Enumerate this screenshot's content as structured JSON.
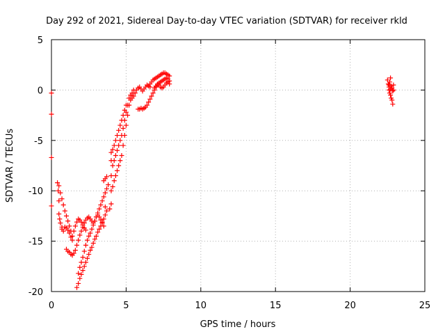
{
  "chart_data": {
    "type": "scatter",
    "title": "Day 292 of 2021, Sidereal Day-to-day VTEC variation (SDTVAR) for receiver rkld",
    "xlabel": "GPS time / hours",
    "ylabel": "SDTVAR / TECUs",
    "xlim": [
      0,
      25
    ],
    "ylim": [
      -20,
      5
    ],
    "xticks": [
      0,
      5,
      10,
      15,
      20,
      25
    ],
    "yticks": [
      -20,
      -15,
      -10,
      -5,
      0,
      5
    ],
    "grid": true,
    "marker": "plus",
    "color": "#ff0000",
    "series": [
      {
        "values": [
          [
            0.0,
            -0.3
          ],
          [
            0.0,
            -2.4
          ],
          [
            0.0,
            -6.7
          ],
          [
            0.0,
            -11.5
          ],
          [
            0.4,
            -9.2
          ],
          [
            0.45,
            -10.0
          ],
          [
            0.5,
            -11.0
          ],
          [
            0.5,
            -12.3
          ],
          [
            0.55,
            -12.8
          ],
          [
            0.6,
            -13.2
          ],
          [
            0.7,
            -13.6
          ],
          [
            0.7,
            -13.8
          ],
          [
            0.8,
            -14.0
          ],
          [
            0.5,
            -9.5
          ],
          [
            0.6,
            -10.2
          ],
          [
            0.7,
            -10.8
          ],
          [
            0.8,
            -11.4
          ],
          [
            0.9,
            -12.0
          ],
          [
            1.0,
            -12.5
          ],
          [
            1.1,
            -13.0
          ],
          [
            1.2,
            -13.5
          ],
          [
            1.3,
            -14.0
          ],
          [
            1.4,
            -14.5
          ],
          [
            1.5,
            -14.0
          ],
          [
            1.6,
            -13.5
          ],
          [
            1.7,
            -13.1
          ],
          [
            1.8,
            -12.8
          ],
          [
            1.9,
            -12.9
          ],
          [
            2.0,
            -13.1
          ],
          [
            2.1,
            -13.4
          ],
          [
            2.2,
            -13.7
          ],
          [
            2.3,
            -13.9
          ],
          [
            0.9,
            -13.6
          ],
          [
            1.0,
            -13.7
          ],
          [
            1.1,
            -13.9
          ],
          [
            1.2,
            -14.2
          ],
          [
            1.3,
            -14.6
          ],
          [
            1.4,
            -14.9
          ],
          [
            1.0,
            -15.8
          ],
          [
            1.1,
            -16.0
          ],
          [
            1.2,
            -16.1
          ],
          [
            1.3,
            -16.3
          ],
          [
            1.4,
            -16.4
          ],
          [
            1.5,
            -16.2
          ],
          [
            1.6,
            -15.9
          ],
          [
            1.7,
            -15.4
          ],
          [
            1.8,
            -14.9
          ],
          [
            1.9,
            -14.4
          ],
          [
            2.0,
            -14.0
          ],
          [
            2.1,
            -13.6
          ],
          [
            2.2,
            -13.2
          ],
          [
            2.3,
            -12.9
          ],
          [
            2.4,
            -12.7
          ],
          [
            2.5,
            -12.6
          ],
          [
            2.6,
            -12.8
          ],
          [
            2.7,
            -13.0
          ],
          [
            2.8,
            -13.2
          ],
          [
            2.9,
            -13.0
          ],
          [
            3.0,
            -12.6
          ],
          [
            3.1,
            -12.4
          ],
          [
            3.2,
            -12.6
          ],
          [
            3.3,
            -12.9
          ],
          [
            3.4,
            -13.2
          ],
          [
            3.5,
            -13.5
          ],
          [
            1.7,
            -19.6
          ],
          [
            1.8,
            -19.2
          ],
          [
            1.9,
            -18.7
          ],
          [
            2.0,
            -18.3
          ],
          [
            2.1,
            -17.9
          ],
          [
            2.2,
            -17.5
          ],
          [
            2.3,
            -17.1
          ],
          [
            2.4,
            -16.7
          ],
          [
            2.5,
            -16.3
          ],
          [
            2.6,
            -15.9
          ],
          [
            2.7,
            -15.6
          ],
          [
            2.8,
            -15.2
          ],
          [
            2.9,
            -14.8
          ],
          [
            3.0,
            -14.5
          ],
          [
            3.1,
            -14.1
          ],
          [
            3.2,
            -13.8
          ],
          [
            3.3,
            -13.5
          ],
          [
            3.4,
            -13.1
          ],
          [
            3.5,
            -12.8
          ],
          [
            3.6,
            -12.4
          ],
          [
            3.7,
            -12.0
          ],
          [
            3.6,
            -11.6
          ],
          [
            1.8,
            -18.2
          ],
          [
            1.9,
            -17.6
          ],
          [
            2.0,
            -17.1
          ],
          [
            2.1,
            -16.6
          ],
          [
            2.2,
            -16.0
          ],
          [
            2.3,
            -15.4
          ],
          [
            2.4,
            -14.9
          ],
          [
            2.5,
            -14.5
          ],
          [
            2.6,
            -14.2
          ],
          [
            2.7,
            -13.8
          ],
          [
            2.8,
            -13.4
          ],
          [
            2.9,
            -13.0
          ],
          [
            3.0,
            -12.6
          ],
          [
            3.1,
            -12.2
          ],
          [
            3.2,
            -11.8
          ],
          [
            3.3,
            -11.4
          ],
          [
            3.4,
            -11.0
          ],
          [
            3.5,
            -10.6
          ],
          [
            3.6,
            -10.2
          ],
          [
            3.7,
            -9.8
          ],
          [
            3.8,
            -9.4
          ],
          [
            3.5,
            -9.0
          ],
          [
            3.6,
            -8.8
          ],
          [
            3.7,
            -8.6
          ],
          [
            3.9,
            -11.8
          ],
          [
            4.0,
            -11.3
          ],
          [
            4.0,
            -10.0
          ],
          [
            4.0,
            -8.5
          ],
          [
            4.0,
            -7.0
          ],
          [
            4.0,
            -6.2
          ],
          [
            4.1,
            -9.6
          ],
          [
            4.1,
            -7.5
          ],
          [
            4.1,
            -5.9
          ],
          [
            4.2,
            -9.0
          ],
          [
            4.2,
            -7.0
          ],
          [
            4.2,
            -5.5
          ],
          [
            4.3,
            -8.5
          ],
          [
            4.3,
            -6.5
          ],
          [
            4.3,
            -5.0
          ],
          [
            4.4,
            -8.0
          ],
          [
            4.4,
            -6.0
          ],
          [
            4.4,
            -4.5
          ],
          [
            4.5,
            -7.5
          ],
          [
            4.5,
            -5.5
          ],
          [
            4.5,
            -4.0
          ],
          [
            4.6,
            -7.0
          ],
          [
            4.6,
            -5.0
          ],
          [
            4.6,
            -3.5
          ],
          [
            4.7,
            -6.5
          ],
          [
            4.7,
            -4.5
          ],
          [
            4.7,
            -3.0
          ],
          [
            4.8,
            -5.5
          ],
          [
            4.8,
            -3.8
          ],
          [
            4.8,
            -2.5
          ],
          [
            4.9,
            -4.5
          ],
          [
            4.9,
            -3.0
          ],
          [
            4.9,
            -2.0
          ],
          [
            5.0,
            -3.5
          ],
          [
            5.0,
            -2.2
          ],
          [
            5.0,
            -1.5
          ],
          [
            5.1,
            -2.5
          ],
          [
            5.1,
            -1.5
          ],
          [
            5.2,
            -1.5
          ],
          [
            5.2,
            -0.8
          ],
          [
            5.3,
            -1.0
          ],
          [
            5.3,
            -0.5
          ],
          [
            5.4,
            -0.8
          ],
          [
            5.4,
            -0.3
          ],
          [
            5.5,
            -0.6
          ],
          [
            5.5,
            0.0
          ],
          [
            5.6,
            -0.3
          ],
          [
            5.7,
            0.0
          ],
          [
            5.8,
            0.2
          ],
          [
            5.9,
            0.3
          ],
          [
            6.0,
            0.1
          ],
          [
            6.1,
            -0.1
          ],
          [
            6.2,
            0.1
          ],
          [
            6.3,
            0.3
          ],
          [
            6.4,
            0.5
          ],
          [
            6.5,
            0.4
          ],
          [
            6.6,
            0.3
          ],
          [
            5.8,
            -1.9
          ],
          [
            5.9,
            -1.9
          ],
          [
            6.0,
            -1.8
          ],
          [
            6.1,
            -1.9
          ],
          [
            6.2,
            -1.8
          ],
          [
            6.3,
            -1.7
          ],
          [
            6.4,
            -1.5
          ],
          [
            6.5,
            -1.2
          ],
          [
            6.6,
            -0.9
          ],
          [
            6.7,
            -0.6
          ],
          [
            6.8,
            -0.3
          ],
          [
            6.9,
            0.0
          ],
          [
            7.0,
            0.3
          ],
          [
            7.1,
            0.5
          ],
          [
            7.2,
            0.7
          ],
          [
            7.3,
            0.8
          ],
          [
            7.4,
            0.9
          ],
          [
            7.5,
            1.0
          ],
          [
            7.6,
            1.1
          ],
          [
            7.7,
            1.2
          ],
          [
            7.8,
            1.1
          ],
          [
            6.6,
            0.6
          ],
          [
            6.7,
            0.8
          ],
          [
            6.8,
            1.0
          ],
          [
            6.9,
            1.1
          ],
          [
            7.0,
            1.2
          ],
          [
            7.1,
            1.3
          ],
          [
            7.2,
            1.4
          ],
          [
            7.3,
            1.5
          ],
          [
            7.4,
            1.6
          ],
          [
            7.5,
            1.7
          ],
          [
            7.6,
            1.7
          ],
          [
            7.7,
            1.6
          ],
          [
            7.8,
            1.5
          ],
          [
            7.9,
            1.4
          ],
          [
            6.9,
            0.2
          ],
          [
            7.0,
            0.4
          ],
          [
            7.1,
            0.6
          ],
          [
            7.2,
            0.5
          ],
          [
            7.3,
            0.3
          ],
          [
            7.4,
            0.2
          ],
          [
            7.5,
            0.3
          ],
          [
            7.6,
            0.5
          ],
          [
            7.7,
            0.7
          ],
          [
            7.8,
            0.8
          ],
          [
            7.9,
            0.6
          ],
          [
            7.9,
            0.9
          ],
          [
            22.5,
            1.0
          ],
          [
            22.55,
            0.6
          ],
          [
            22.6,
            0.3
          ],
          [
            22.6,
            0.0
          ],
          [
            22.65,
            -0.3
          ],
          [
            22.65,
            0.8
          ],
          [
            22.7,
            1.2
          ],
          [
            22.7,
            -0.5
          ],
          [
            22.75,
            0.4
          ],
          [
            22.75,
            -0.8
          ],
          [
            22.8,
            0.2
          ],
          [
            22.8,
            -1.0
          ],
          [
            22.85,
            -0.1
          ],
          [
            22.85,
            -1.4
          ],
          [
            22.9,
            0.5
          ],
          [
            22.9,
            0.0
          ],
          [
            22.6,
            0.5
          ],
          [
            22.7,
            0.1
          ]
        ]
      }
    ]
  }
}
